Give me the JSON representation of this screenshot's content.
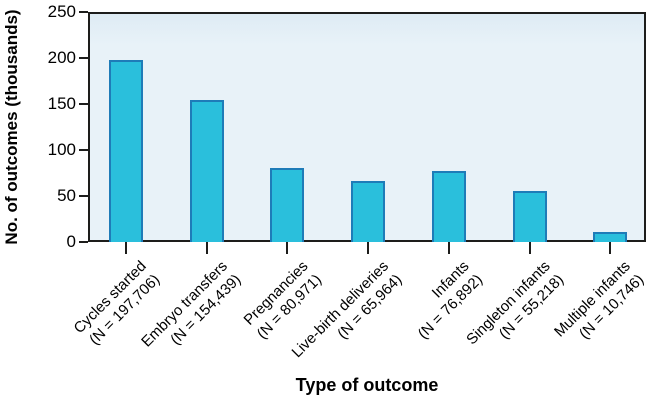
{
  "chart_data": {
    "type": "bar",
    "title": "",
    "xlabel": "Type of outcome",
    "ylabel": "No. of outcomes (thousands)",
    "ylim": [
      0,
      250
    ],
    "yticks": [
      0,
      50,
      100,
      150,
      200,
      250
    ],
    "grid": false,
    "legend": null,
    "tick_label_rotation_deg": 45,
    "categories": [
      "Cycles started",
      "Embryo transfers",
      "Pregnancies",
      "Live-birth deliveries",
      "Infants",
      "Singleton infants",
      "Multiple infants"
    ],
    "category_sublabels": [
      "(N = 197,706)",
      "(N = 154,439)",
      "(N = 80,971)",
      "(N = 65,964)",
      "(N = 76,892)",
      "(N = 55,218)",
      "(N = 10,746)"
    ],
    "counts": [
      197706,
      154439,
      80971,
      65964,
      76892,
      55218,
      10746
    ],
    "values_thousands": [
      197.706,
      154.439,
      80.971,
      65.964,
      76.892,
      55.218,
      10.746
    ],
    "colors": {
      "bar_fill": "#2abfdc",
      "bar_border": "#1e7cb8",
      "plot_background": "#e8f2f8",
      "axis": "#1d1d1b",
      "text": "#000000",
      "figure_background": "#ffffff"
    }
  }
}
